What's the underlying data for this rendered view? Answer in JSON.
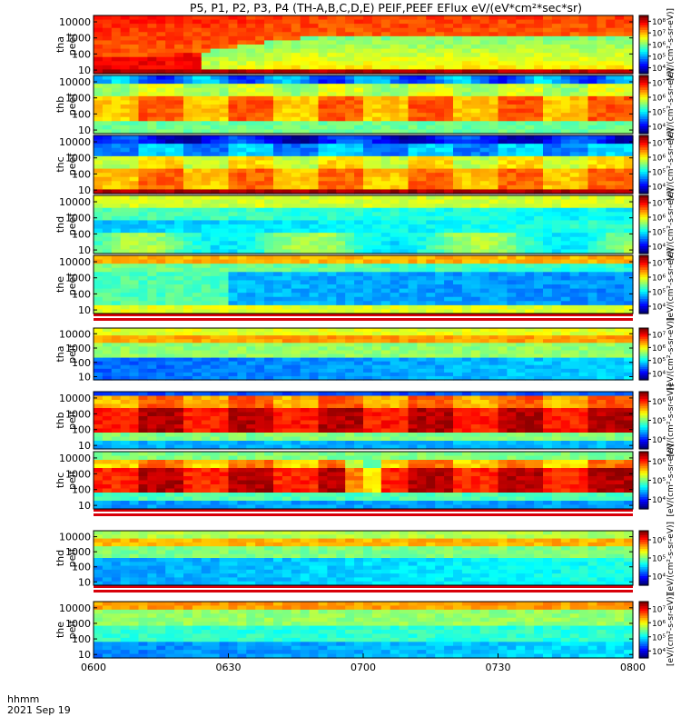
{
  "chart_data": {
    "type": "heatmap",
    "title": "P5, P1, P2, P3, P4 (TH-A,B,C,D,E) PEIF,PEEF EFlux eV/(eV*cm²*sec*sr)",
    "xlabel_lines": [
      "hhmm",
      "2021 Sep 19"
    ],
    "x_ticks": [
      "0600",
      "0630",
      "0700",
      "0730",
      "0800"
    ],
    "x_range": [
      "0600",
      "0800"
    ],
    "y_ticks": [
      "10",
      "100",
      "1000",
      "10000"
    ],
    "y_scale": "log",
    "y_range": [
      6,
      25000
    ],
    "colorbar_label": "[eV/(cm²-s-sr-eV)]",
    "panels": [
      {
        "label": [
          "tha",
          "peef"
        ],
        "cbar_ticks": [
          "10⁴",
          "10⁵",
          "10⁶",
          "10⁷",
          "10⁸"
        ],
        "gap_rows": false
      },
      {
        "label": [
          "thb",
          "peef"
        ],
        "cbar_ticks": [
          "10⁴",
          "10⁵",
          "10⁶",
          "10⁷"
        ],
        "gap_rows": false
      },
      {
        "label": [
          "thc",
          "peef"
        ],
        "cbar_ticks": [
          "10⁴",
          "10⁵",
          "10⁶",
          "10⁷"
        ],
        "gap_rows": false
      },
      {
        "label": [
          "thd",
          "peef"
        ],
        "cbar_ticks": [
          "10⁴",
          "10⁵",
          "10⁶",
          "10⁷"
        ],
        "gap_rows": false
      },
      {
        "label": [
          "the",
          "peef"
        ],
        "cbar_ticks": [
          "10⁴",
          "10⁵",
          "10⁶",
          "10⁷"
        ],
        "gap_rows": true
      },
      {
        "label": [
          "tha",
          "peif"
        ],
        "cbar_ticks": [
          "10⁴",
          "10⁵",
          "10⁶",
          "10⁷"
        ],
        "gap_rows": false
      },
      {
        "label": [
          "thb",
          "peif"
        ],
        "cbar_ticks": [
          "10⁴",
          "10⁵",
          "10⁶"
        ],
        "gap_rows": false
      },
      {
        "label": [
          "thc",
          "peif"
        ],
        "cbar_ticks": [
          "10⁴",
          "10⁵",
          "10⁶"
        ],
        "gap_rows": true
      },
      {
        "label": [
          "thd",
          "peif"
        ],
        "cbar_ticks": [
          "10⁴",
          "10⁵",
          "10⁶"
        ],
        "gap_rows": true
      },
      {
        "label": [
          "the",
          "peif"
        ],
        "cbar_ticks": [
          "10⁴",
          "10⁵",
          "10⁶",
          "10⁷"
        ],
        "gap_rows": false
      }
    ]
  }
}
